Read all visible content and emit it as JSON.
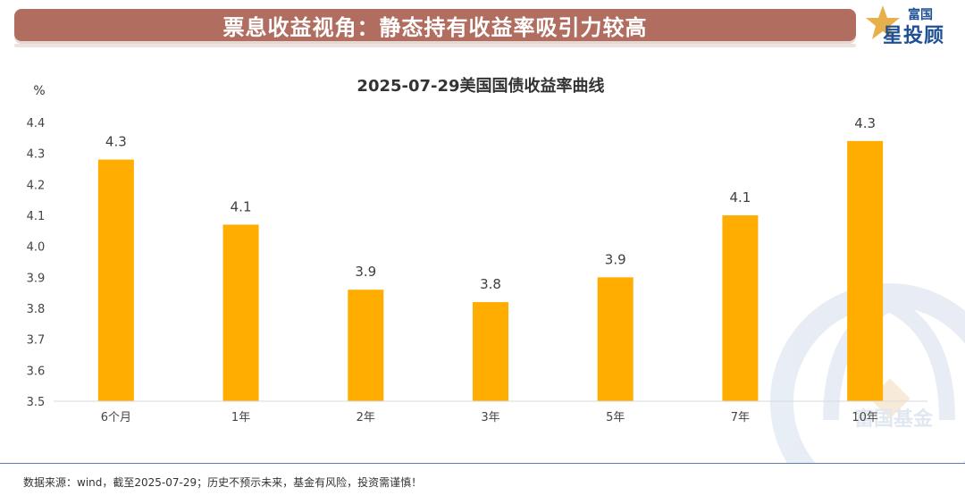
{
  "header": {
    "title": "票息收益视角：静态持有收益率吸引力较高",
    "logo_top": "富国",
    "logo_main": "星投顾"
  },
  "watermark": {
    "text": "富国基金"
  },
  "chart_data": {
    "type": "bar",
    "title": "2025-07-29美国国债收益率曲线",
    "ylabel": "%",
    "xlabel": "",
    "categories": [
      "6个月",
      "1年",
      "2年",
      "3年",
      "5年",
      "7年",
      "10年"
    ],
    "values": [
      4.28,
      4.07,
      3.86,
      3.82,
      3.9,
      4.1,
      4.34
    ],
    "data_labels": [
      "4.3",
      "4.1",
      "3.9",
      "3.8",
      "3.9",
      "4.1",
      "4.3"
    ],
    "ylim": [
      3.5,
      4.4
    ],
    "yticks": [
      "3.5",
      "3.6",
      "3.7",
      "3.8",
      "3.9",
      "4.0",
      "4.1",
      "4.2",
      "4.3",
      "4.4"
    ],
    "bar_color": "#ffad00",
    "grid": false
  },
  "footer": {
    "source": "数据来源：wind，截至2025-07-29；历史不预示未来，基金有风险，投资需谨慎！"
  },
  "colors": {
    "banner": "#b16d5f",
    "logo": "#1f4f95",
    "bar": "#ffad00",
    "footer_line": "#5b7fb1",
    "watermark": "#d6e0ee"
  }
}
